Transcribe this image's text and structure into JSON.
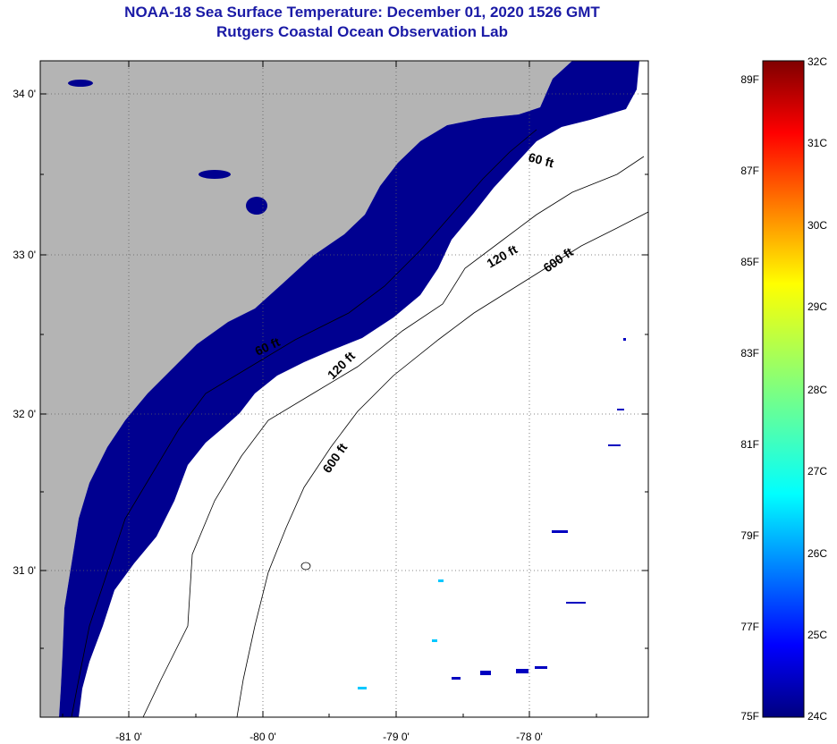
{
  "header": {
    "title": "NOAA-18 Sea Surface Temperature:  December 01, 2020 1526 GMT",
    "subtitle": "Rutgers Coastal Ocean Observation Lab"
  },
  "map": {
    "lat_labels": [
      "34 0'",
      "33 0'",
      "32 0'",
      "31 0'"
    ],
    "lon_labels": [
      "-81 0'",
      "-80 0'",
      "-79 0'",
      "-78 0'"
    ],
    "contour_labels": [
      "60 ft",
      "120 ft",
      "600 ft",
      "60 ft",
      "120 ft",
      "600 ft"
    ],
    "colors": {
      "land": "#b4b4b4",
      "cold_water": "#000090",
      "no_data": "#ffffff"
    }
  },
  "colorbar": {
    "celsius": [
      "32C",
      "31C",
      "30C",
      "29C",
      "28C",
      "27C",
      "26C",
      "25C",
      "24C"
    ],
    "fahrenheit": [
      "89F",
      "87F",
      "85F",
      "83F",
      "81F",
      "79F",
      "77F",
      "75F"
    ],
    "range_c": [
      24,
      32
    ],
    "range_f": [
      75,
      89
    ]
  }
}
